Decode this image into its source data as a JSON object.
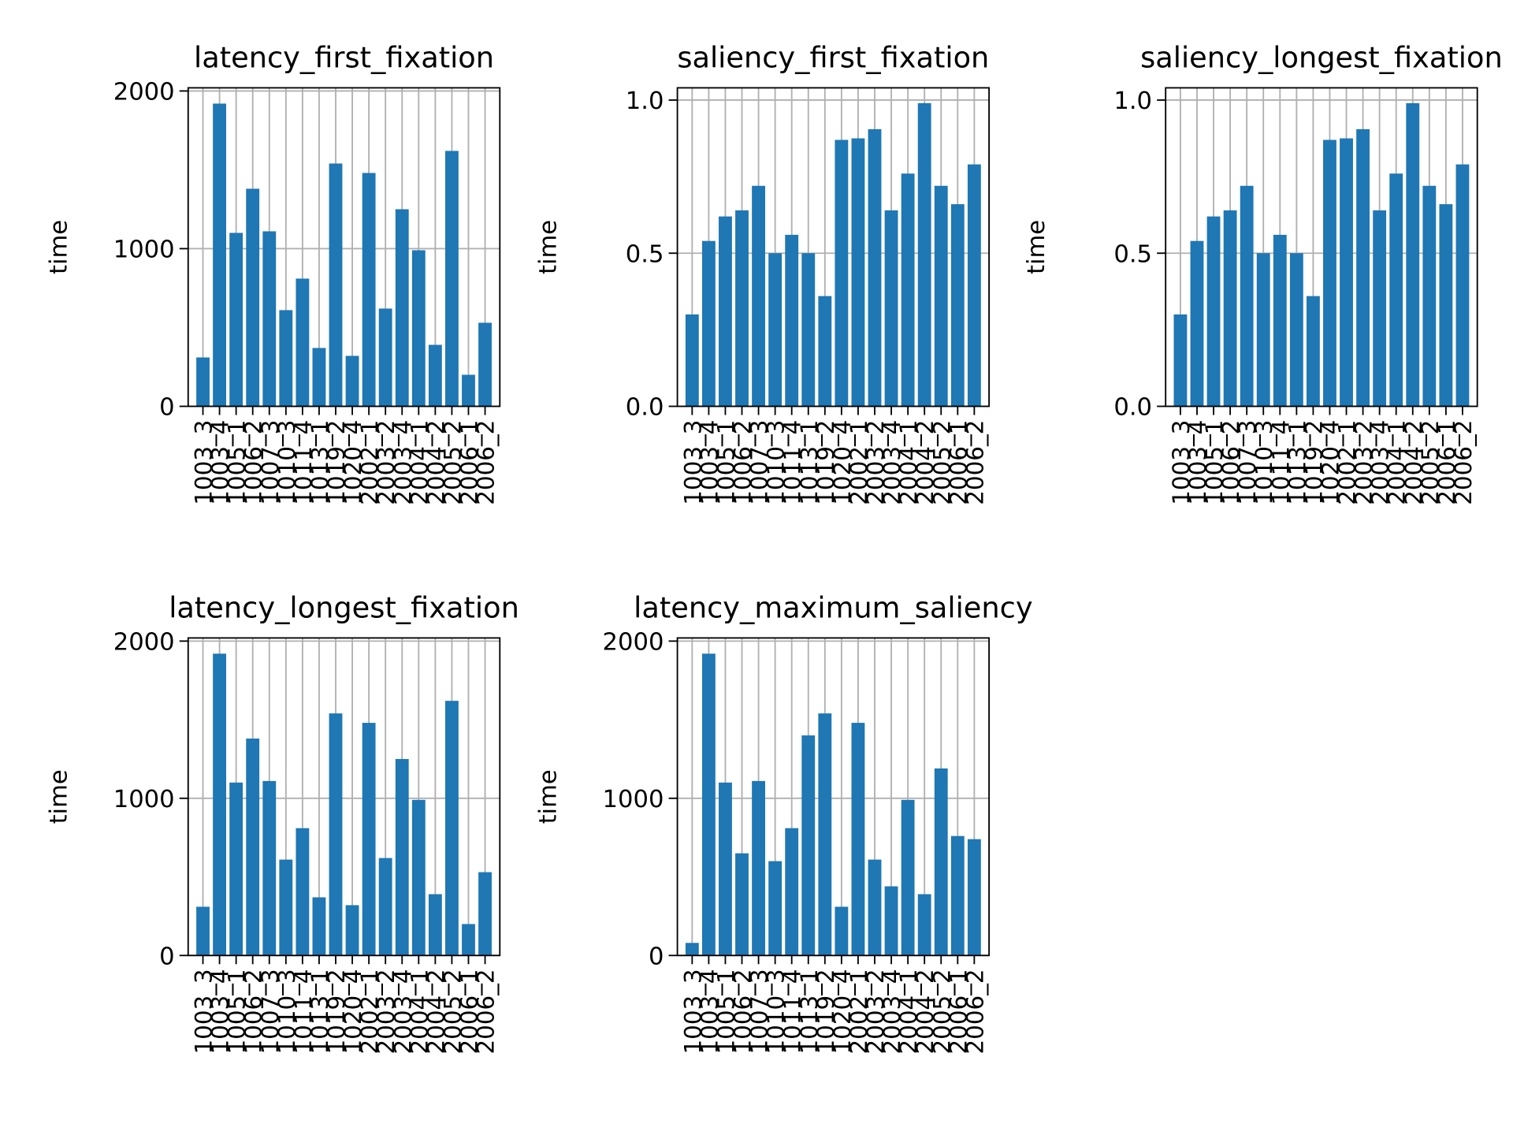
{
  "chart_data": [
    {
      "type": "bar",
      "title": "latency_first_fixation",
      "ylabel": "time",
      "color": "#1f77b4",
      "grid": true,
      "categories": [
        "1003_3",
        "1003_4",
        "1005_1",
        "1006_2",
        "1007_3",
        "1010_3",
        "1011_4",
        "1013_1",
        "1019_2",
        "1020_4",
        "2002_1",
        "2003_2",
        "2003_4",
        "2004_1",
        "2004_2",
        "2005_2",
        "2006_1",
        "2006_2"
      ],
      "values": [
        310,
        1920,
        1100,
        1380,
        1110,
        610,
        810,
        370,
        1540,
        320,
        1480,
        620,
        1250,
        990,
        390,
        1620,
        200,
        530
      ],
      "ylim": [
        0,
        2020
      ],
      "yticks": [
        0,
        1000,
        2000
      ]
    },
    {
      "type": "bar",
      "title": "saliency_first_fixation",
      "ylabel": "time",
      "color": "#1f77b4",
      "grid": true,
      "categories": [
        "1003_3",
        "1003_4",
        "1005_1",
        "1006_2",
        "1007_3",
        "1010_3",
        "1011_4",
        "1013_1",
        "1019_2",
        "1020_4",
        "2002_1",
        "2003_2",
        "2003_4",
        "2004_1",
        "2004_2",
        "2005_2",
        "2006_1",
        "2006_2"
      ],
      "values": [
        0.3,
        0.54,
        0.62,
        0.64,
        0.72,
        0.5,
        0.56,
        0.5,
        0.36,
        0.87,
        0.875,
        0.905,
        0.64,
        0.76,
        0.99,
        0.72,
        0.66,
        0.79
      ],
      "ylim": [
        0,
        1.04
      ],
      "yticks": [
        {
          "value": 0,
          "label": "0.0"
        },
        0.5,
        {
          "value": 1,
          "label": "1.0"
        }
      ]
    },
    {
      "type": "bar",
      "title": "saliency_longest_fixation",
      "ylabel": "time",
      "color": "#1f77b4",
      "grid": true,
      "categories": [
        "1003_3",
        "1003_4",
        "1005_1",
        "1006_2",
        "1007_3",
        "1010_3",
        "1011_4",
        "1013_1",
        "1019_2",
        "1020_4",
        "2002_1",
        "2003_2",
        "2003_4",
        "2004_1",
        "2004_2",
        "2005_2",
        "2006_1",
        "2006_2"
      ],
      "values": [
        0.3,
        0.54,
        0.62,
        0.64,
        0.72,
        0.5,
        0.56,
        0.5,
        0.36,
        0.87,
        0.875,
        0.905,
        0.64,
        0.76,
        0.99,
        0.72,
        0.66,
        0.79
      ],
      "ylim": [
        0,
        1.04
      ],
      "yticks": [
        {
          "value": 0,
          "label": "0.0"
        },
        0.5,
        {
          "value": 1,
          "label": "1.0"
        }
      ]
    },
    {
      "type": "bar",
      "title": "latency_longest_fixation",
      "ylabel": "time",
      "color": "#1f77b4",
      "grid": true,
      "categories": [
        "1003_3",
        "1003_4",
        "1005_1",
        "1006_2",
        "1007_3",
        "1010_3",
        "1011_4",
        "1013_1",
        "1019_2",
        "1020_4",
        "2002_1",
        "2003_2",
        "2003_4",
        "2004_1",
        "2004_2",
        "2005_2",
        "2006_1",
        "2006_2"
      ],
      "values": [
        310,
        1920,
        1100,
        1380,
        1110,
        610,
        810,
        370,
        1540,
        320,
        1480,
        620,
        1250,
        990,
        390,
        1620,
        200,
        530
      ],
      "ylim": [
        0,
        2020
      ],
      "yticks": [
        0,
        1000,
        2000
      ]
    },
    {
      "type": "bar",
      "title": "latency_maximum_saliency",
      "ylabel": "time",
      "color": "#1f77b4",
      "grid": true,
      "categories": [
        "1003_3",
        "1003_4",
        "1005_1",
        "1006_2",
        "1007_3",
        "1010_3",
        "1011_4",
        "1013_1",
        "1019_2",
        "1020_4",
        "2002_1",
        "2003_2",
        "2003_4",
        "2004_1",
        "2004_2",
        "2005_2",
        "2006_1",
        "2006_2"
      ],
      "values": [
        80,
        1920,
        1100,
        650,
        1110,
        600,
        810,
        1400,
        1540,
        310,
        1480,
        610,
        440,
        990,
        390,
        1190,
        760,
        740
      ],
      "ylim": [
        0,
        2020
      ],
      "yticks": [
        0,
        1000,
        2000
      ]
    }
  ]
}
